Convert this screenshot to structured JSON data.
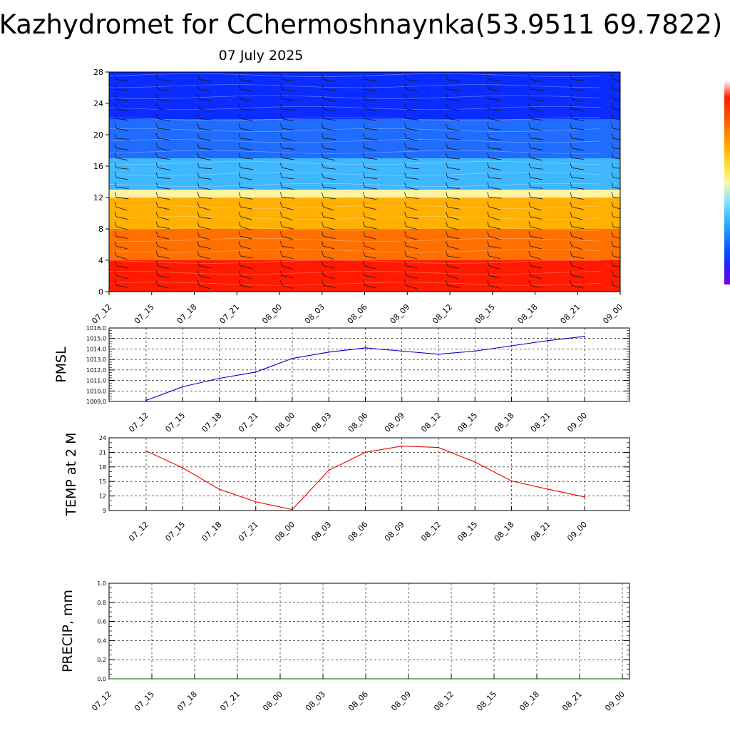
{
  "header": {
    "title": "Kazhydromet for CChermoshnaynka(53.9511 69.7822)",
    "date": "07 July 2025"
  },
  "colors": {
    "pmsl_line": "#0000cc",
    "temp_line": "#ee0000",
    "precip_line": "#006400",
    "colorbar": [
      "#7a00d6",
      "#2a1cff",
      "#0a50ff",
      "#1f8aff",
      "#3fc0ff",
      "#8ee6ff",
      "#fff6a0",
      "#ffe040",
      "#ffb000",
      "#ff8000",
      "#ff4a00",
      "#ff1a00",
      "#ffffff"
    ]
  },
  "chart_data": [
    {
      "type": "heatmap",
      "title": "",
      "xlabel": "",
      "ylabel": "",
      "x": [
        "07_12",
        "07_15",
        "07_18",
        "07_21",
        "08_00",
        "08_03",
        "08_06",
        "08_09",
        "08_12",
        "08_15",
        "08_18",
        "08_21",
        "09_00"
      ],
      "yticks": [
        0,
        4,
        8,
        12,
        16,
        20,
        24,
        28
      ],
      "ylim": [
        0,
        28
      ],
      "color_bands": [
        {
          "from": 0,
          "to": 4,
          "color": "#ff1a00"
        },
        {
          "from": 4,
          "to": 8,
          "color": "#ff7000"
        },
        {
          "from": 8,
          "to": 12,
          "color": "#ffb000"
        },
        {
          "from": 12,
          "to": 13,
          "color": "#fff3a0"
        },
        {
          "from": 13,
          "to": 17,
          "color": "#3fb8ff"
        },
        {
          "from": 17,
          "to": 22,
          "color": "#1f6cff"
        },
        {
          "from": 22,
          "to": 28,
          "color": "#0a2cff"
        }
      ],
      "wind_barbs": true
    },
    {
      "type": "line",
      "title": "",
      "xlabel": "",
      "ylabel": "PMSL",
      "x": [
        "07_12",
        "07_15",
        "07_18",
        "07_21",
        "08_00",
        "08_03",
        "08_06",
        "08_09",
        "08_12",
        "08_15",
        "08_18",
        "08_21",
        "09_00"
      ],
      "yticks": [
        "1009.0",
        "1010.0",
        "1011.0",
        "1012.0",
        "1013.0",
        "1014.0",
        "1015.0",
        "1016.0"
      ],
      "ylim": [
        1009,
        1016
      ],
      "series": [
        {
          "values": [
            1009.1,
            1010.4,
            1011.2,
            1011.8,
            1013.1,
            1013.7,
            1014.1,
            1013.8,
            1013.5,
            1013.8,
            1014.3,
            1014.8,
            1015.2
          ]
        }
      ]
    },
    {
      "type": "line",
      "title": "",
      "xlabel": "",
      "ylabel": "TEMP at 2 M",
      "x": [
        "07_12",
        "07_15",
        "07_18",
        "07_21",
        "08_00",
        "08_03",
        "08_06",
        "08_09",
        "08_12",
        "08_15",
        "08_18",
        "08_21",
        "09_00"
      ],
      "yticks": [
        "9",
        "12",
        "15",
        "18",
        "21",
        "24"
      ],
      "ylim": [
        9,
        24
      ],
      "series": [
        {
          "values": [
            21.3,
            17.8,
            13.4,
            10.8,
            9.2,
            17.3,
            21.0,
            22.3,
            22.0,
            19.0,
            15.1,
            13.4,
            11.8
          ]
        }
      ]
    },
    {
      "type": "line",
      "title": "",
      "xlabel": "",
      "ylabel": "PRECIP, mm",
      "x": [
        "07_12",
        "07_15",
        "07_18",
        "07_21",
        "08_00",
        "08_03",
        "08_06",
        "08_09",
        "08_12",
        "08_15",
        "08_18",
        "08_21",
        "09_00"
      ],
      "yticks": [
        "0.0",
        "0.2",
        "0.4",
        "0.6",
        "0.8",
        "1.0"
      ],
      "ylim": [
        0,
        1
      ],
      "series": [
        {
          "values": [
            0,
            0,
            0,
            0,
            0,
            0,
            0,
            0,
            0,
            0,
            0,
            0,
            0
          ]
        }
      ]
    }
  ]
}
